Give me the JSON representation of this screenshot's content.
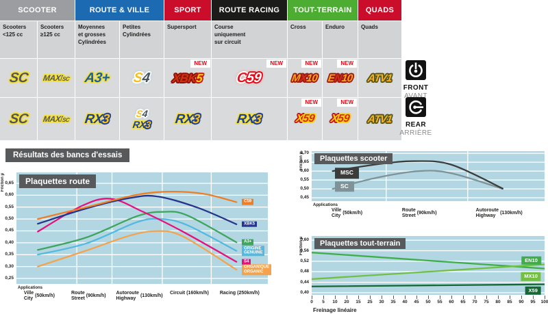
{
  "section_title": "Résultats des bancs d'essais",
  "new_label": "NEW",
  "side_tags": {
    "front": {
      "en": "FRONT",
      "fr": "AVANT"
    },
    "rear": {
      "en": "REAR",
      "fr": "ARRIÈRE"
    }
  },
  "table": {
    "groups": [
      {
        "label": "SCOOTER",
        "color": "#9b9da0",
        "span": 2
      },
      {
        "label": "ROUTE & VILLE",
        "color": "#1c6ab2",
        "span": 2
      },
      {
        "label": "SPORT",
        "color": "#cb0d2c",
        "span": 1
      },
      {
        "label": "ROUTE RACING",
        "color": "#1b1b19",
        "span": 1
      },
      {
        "label": "TOUT-TERRAIN",
        "color": "#4dad33",
        "span": 2
      },
      {
        "label": "QUADS",
        "color": "#cb0d2c",
        "span": 1
      }
    ],
    "subheaders": [
      "Scooters\n<125 cc",
      "Scooters\n≥125 cc",
      "Moyennes\net grosses\nCylindrées",
      "Petites\nCylindrées",
      "Supersport",
      "Course\nuniquement\nsur circuit",
      "Cross",
      "Enduro",
      "Quads"
    ],
    "rows": {
      "front": {
        "cells": [
          {
            "badges": [
              "SC"
            ],
            "new": false
          },
          {
            "badges": [
              "MAXISC"
            ],
            "new": false
          },
          {
            "badges": [
              "A3PLUS"
            ],
            "new": false
          },
          {
            "badges": [
              "S4"
            ],
            "new": false
          },
          {
            "badges": [
              "XBK5"
            ],
            "new": true
          },
          {
            "badges": [
              "C59"
            ],
            "new": true
          },
          {
            "badges": [
              "MX10"
            ],
            "new": true
          },
          {
            "badges": [
              "EN10"
            ],
            "new": true
          },
          {
            "badges": [
              "ATV1"
            ],
            "new": false
          }
        ]
      },
      "rear": {
        "cells": [
          {
            "badges": [
              "SC"
            ],
            "new": false
          },
          {
            "badges": [
              "MAXISC"
            ],
            "new": false
          },
          {
            "badges": [
              "RX3"
            ],
            "new": false
          },
          {
            "badges": [
              "S4",
              "RX3"
            ],
            "new": false
          },
          {
            "badges": [
              "RX3"
            ],
            "new": false
          },
          {
            "badges": [
              "RX3"
            ],
            "new": false
          },
          {
            "badges": [
              "X59"
            ],
            "new": true
          },
          {
            "badges": [
              "X59"
            ],
            "new": true
          },
          {
            "badges": [
              "ATV1"
            ],
            "new": false
          }
        ]
      }
    }
  },
  "badges": {
    "SC": {
      "segments": [
        {
          "text": "SC",
          "style": "gray-yellow"
        }
      ]
    },
    "MAXISC": {
      "segments": [
        {
          "text": "MAXI",
          "style": "gray-yellow"
        },
        {
          "text": "SC",
          "style": "gray-yellow-small"
        }
      ]
    },
    "A3PLUS": {
      "segments": [
        {
          "text": "A3+",
          "style": "blue-yellow"
        }
      ]
    },
    "S4": {
      "segments": [
        {
          "text": "S",
          "style": "yellow-white-glow"
        },
        {
          "text": "4",
          "style": "dark-white-glow"
        }
      ]
    },
    "XBK5": {
      "segments": [
        {
          "text": "XBK",
          "style": "red-dark"
        },
        {
          "text": "5",
          "style": "yellow-red"
        }
      ]
    },
    "C59": {
      "segments": [
        {
          "text": "C",
          "style": "red-white-glow"
        },
        {
          "text": "59",
          "style": "white-red-glow"
        }
      ]
    },
    "MX10": {
      "segments": [
        {
          "text": "M",
          "style": "orange-red"
        },
        {
          "text": "X",
          "style": "red-on-red"
        },
        {
          "text": "10",
          "style": "orange-red"
        }
      ]
    },
    "EN10": {
      "segments": [
        {
          "text": "E",
          "style": "orange-red"
        },
        {
          "text": "N",
          "style": "red-on-red"
        },
        {
          "text": "10",
          "style": "orange-red"
        }
      ]
    },
    "ATV1": {
      "segments": [
        {
          "text": "ATV1",
          "style": "orange-dark"
        }
      ]
    },
    "RX3": {
      "segments": [
        {
          "text": "RX",
          "style": "navy-yellow"
        },
        {
          "text": "3",
          "style": "yellow-navy"
        }
      ]
    },
    "X59": {
      "segments": [
        {
          "text": "X",
          "style": "yellow-red"
        },
        {
          "text": "59",
          "style": "red-yellow"
        }
      ]
    }
  },
  "chart_data": [
    {
      "type": "line",
      "title": "Plaquettes route",
      "ylabel": "Friction µ",
      "ylim": [
        0.25,
        0.65
      ],
      "ystep": 0.05,
      "ydisp": [
        0.227,
        0.696
      ],
      "grid_x": [
        0.24,
        0.38,
        0.58,
        0.775
      ],
      "label_mode": "end",
      "x_axis": {
        "intro": "Applications",
        "stops": [
          {
            "pos": 0.085,
            "line1": "Ville",
            "line2": "City",
            "speed": "(50km/h)"
          },
          {
            "pos": 0.28,
            "line1": "Route",
            "line2": "Street",
            "speed": "(90km/h)"
          },
          {
            "pos": 0.48,
            "line1": "Autoroute",
            "line2": "Highway",
            "speed": "(130km/h)"
          },
          {
            "pos": 0.68,
            "line1": "Circuit",
            "line2": "",
            "speed": "(160km/h)"
          },
          {
            "pos": 0.88,
            "line1": "Racing",
            "line2": "",
            "speed": "(250km/h)"
          }
        ]
      },
      "series": [
        {
          "name": "ORGANIQUE ORGANIC",
          "label": "ORGANIQUE\nORGANIC",
          "color": "#f4a24c",
          "points": [
            [
              0.085,
              0.3
            ],
            [
              0.28,
              0.368
            ],
            [
              0.45,
              0.43
            ],
            [
              0.555,
              0.449
            ],
            [
              0.66,
              0.428
            ],
            [
              0.875,
              0.287
            ]
          ]
        },
        {
          "name": "ORIGINE GENUINE",
          "label": "ORIGINE\nGENUINE",
          "color": "#54b9e0",
          "points": [
            [
              0.085,
              0.35
            ],
            [
              0.28,
              0.398
            ],
            [
              0.48,
              0.487
            ],
            [
              0.575,
              0.5
            ],
            [
              0.68,
              0.474
            ],
            [
              0.875,
              0.366
            ]
          ]
        },
        {
          "name": "A3+",
          "label": "A3+",
          "color": "#3fa45c",
          "points": [
            [
              0.085,
              0.37
            ],
            [
              0.28,
              0.423
            ],
            [
              0.48,
              0.512
            ],
            [
              0.585,
              0.53
            ],
            [
              0.68,
              0.515
            ],
            [
              0.875,
              0.402
            ]
          ]
        },
        {
          "name": "S4",
          "label": "S4",
          "color": "#e5127d",
          "points": [
            [
              0.085,
              0.447
            ],
            [
              0.26,
              0.555
            ],
            [
              0.375,
              0.585
            ],
            [
              0.5,
              0.532
            ],
            [
              0.66,
              0.448
            ],
            [
              0.875,
              0.32
            ]
          ]
        },
        {
          "name": "XBK5",
          "label": "XBK5",
          "color": "#27348b",
          "points": [
            [
              0.085,
              0.48
            ],
            [
              0.28,
              0.545
            ],
            [
              0.45,
              0.588
            ],
            [
              0.56,
              0.595
            ],
            [
              0.72,
              0.548
            ],
            [
              0.875,
              0.478
            ]
          ]
        },
        {
          "name": "C59",
          "label": "C59",
          "color": "#ef7d23",
          "points": [
            [
              0.085,
              0.5
            ],
            [
              0.28,
              0.55
            ],
            [
              0.48,
              0.602
            ],
            [
              0.62,
              0.615
            ],
            [
              0.75,
              0.605
            ],
            [
              0.875,
              0.571
            ]
          ]
        }
      ]
    },
    {
      "type": "line",
      "title": "Plaquettes scooter",
      "ylabel": "Friction µ",
      "ylim": [
        0.45,
        0.7
      ],
      "ystep": 0.05,
      "ydisp": [
        0.431,
        0.712
      ],
      "grid_x": [
        0.32,
        0.67
      ],
      "label_mode": "tag",
      "x_axis": {
        "intro": "Applications",
        "stops": [
          {
            "pos": 0.145,
            "line1": "Ville",
            "line2": "City",
            "speed": "(50km/h)"
          },
          {
            "pos": 0.455,
            "line1": "Route",
            "line2": "Street",
            "speed": "(90km/h)"
          },
          {
            "pos": 0.795,
            "line1": "Autoroute",
            "line2": "Highway",
            "speed": "(130km/h)"
          }
        ]
      },
      "series": [
        {
          "name": "SC",
          "label": "SC",
          "color": "#7e9297",
          "tag_pos": [
            0.1,
            0.512
          ],
          "points": [
            [
              0.09,
              0.5
            ],
            [
              0.28,
              0.563
            ],
            [
              0.46,
              0.6
            ],
            [
              0.6,
              0.588
            ],
            [
              0.82,
              0.5
            ]
          ]
        },
        {
          "name": "MSC",
          "label": "MSC",
          "color": "#3c3c3b",
          "tag_pos": [
            0.1,
            0.588
          ],
          "points": [
            [
              0.09,
              0.6
            ],
            [
              0.28,
              0.638
            ],
            [
              0.44,
              0.656
            ],
            [
              0.6,
              0.636
            ],
            [
              0.82,
              0.502
            ]
          ]
        }
      ]
    },
    {
      "type": "line",
      "title": "Plaquettes tout-terrain",
      "ylabel": "Friction µ",
      "ylim": [
        0.4,
        0.6
      ],
      "ystep": 0.04,
      "ydisp": [
        0.392,
        0.616
      ],
      "label_mode": "tag-right",
      "x_axis": {
        "ticks": [
          "0",
          "5",
          "10",
          "20",
          "15",
          "25",
          "30",
          "35",
          "40",
          "45",
          "50",
          "55",
          "60",
          "65",
          "70",
          "75",
          "80",
          "85",
          "90",
          "95",
          "100"
        ],
        "label": "Freinage linéaire"
      },
      "series": [
        {
          "name": "EN10",
          "label": "EN10",
          "color": "#3fae49",
          "tag_pos": [
            0.985,
            0.522
          ],
          "points": [
            [
              0.0,
              0.553
            ],
            [
              1.0,
              0.492
            ]
          ]
        },
        {
          "name": "MX10",
          "label": "MX10",
          "color": "#72bf44",
          "tag_pos": [
            0.985,
            0.462
          ],
          "points": [
            [
              0.0,
              0.452
            ],
            [
              1.0,
              0.508
            ]
          ]
        },
        {
          "name": "X59",
          "label": "X59",
          "color": "#156734",
          "tag_pos": [
            0.985,
            0.408
          ],
          "points": [
            [
              0.0,
              0.424
            ],
            [
              1.0,
              0.432
            ]
          ]
        }
      ]
    }
  ]
}
